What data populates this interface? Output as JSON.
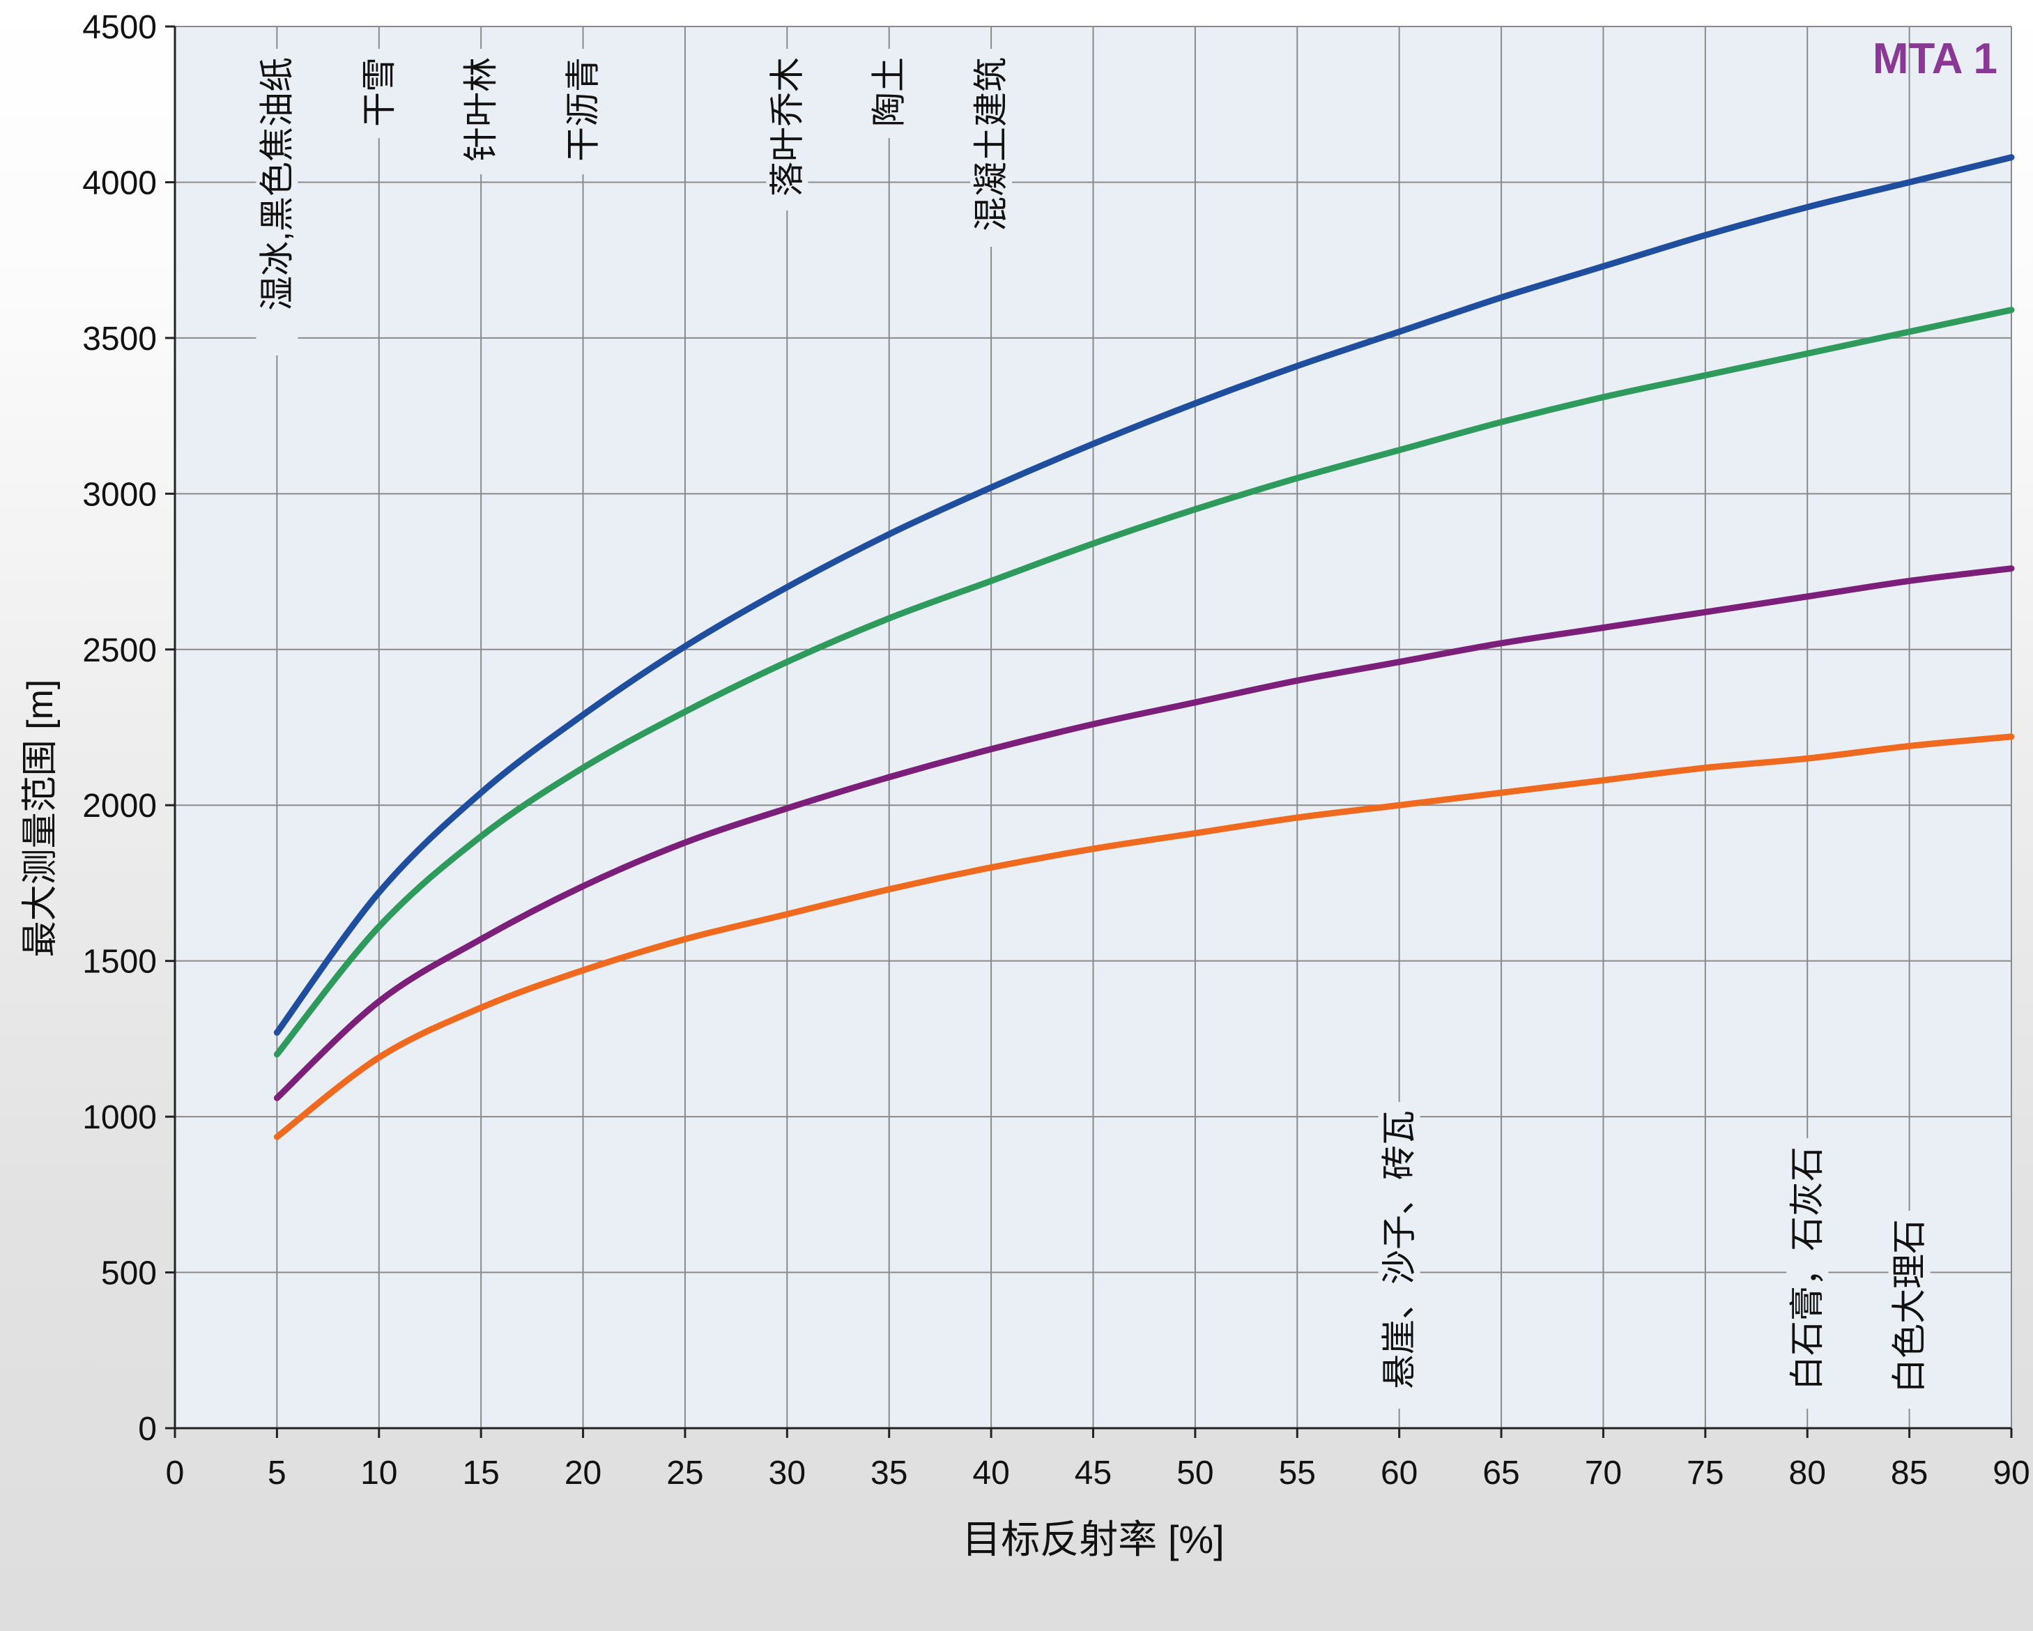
{
  "chart_data": {
    "type": "line",
    "title": "",
    "badge": "MTA 1",
    "xlabel": "目标反射率 [%]",
    "ylabel": "最大测量范围 [m]",
    "xlim": [
      0,
      90
    ],
    "ylim": [
      0,
      4500
    ],
    "x_ticks": [
      0,
      5,
      10,
      15,
      20,
      25,
      30,
      35,
      40,
      45,
      50,
      55,
      60,
      65,
      70,
      75,
      80,
      85,
      90
    ],
    "y_ticks": [
      0,
      500,
      1000,
      1500,
      2000,
      2500,
      3000,
      3500,
      4000,
      4500
    ],
    "grid": true,
    "x": [
      5,
      10,
      15,
      20,
      25,
      30,
      35,
      40,
      45,
      50,
      55,
      60,
      65,
      70,
      75,
      80,
      85,
      90
    ],
    "series": [
      {
        "color": "#1f4e9e",
        "values": [
          1270,
          1720,
          2040,
          2290,
          2510,
          2700,
          2870,
          3020,
          3160,
          3290,
          3410,
          3520,
          3630,
          3730,
          3830,
          3920,
          4000,
          4080
        ]
      },
      {
        "color": "#2e9a5c",
        "values": [
          1200,
          1610,
          1900,
          2120,
          2300,
          2460,
          2600,
          2720,
          2840,
          2950,
          3050,
          3140,
          3230,
          3310,
          3380,
          3450,
          3520,
          3590
        ]
      },
      {
        "color": "#7b1f7b",
        "values": [
          1060,
          1370,
          1570,
          1740,
          1880,
          1990,
          2090,
          2180,
          2260,
          2330,
          2400,
          2460,
          2520,
          2570,
          2620,
          2670,
          2720,
          2760
        ]
      },
      {
        "color": "#ef6a1f",
        "values": [
          935,
          1190,
          1350,
          1470,
          1570,
          1650,
          1730,
          1800,
          1860,
          1910,
          1960,
          2000,
          2040,
          2080,
          2120,
          2150,
          2190,
          2220
        ]
      }
    ],
    "annotations": [
      {
        "x": 5,
        "anchor": "top",
        "text": "湿冰,黑色焦油纸"
      },
      {
        "x": 10,
        "anchor": "top",
        "text": "干雪"
      },
      {
        "x": 15,
        "anchor": "top",
        "text": "针叶林"
      },
      {
        "x": 20,
        "anchor": "top",
        "text": "干沥青"
      },
      {
        "x": 30,
        "anchor": "top",
        "text": "落叶乔木"
      },
      {
        "x": 35,
        "anchor": "top",
        "text": "陶土"
      },
      {
        "x": 40,
        "anchor": "top",
        "text": "混凝土建筑"
      },
      {
        "x": 60,
        "anchor": "bottom",
        "text": "悬崖、沙子、砖瓦"
      },
      {
        "x": 80,
        "anchor": "bottom",
        "text": "白石膏，石灰石"
      },
      {
        "x": 85,
        "anchor": "bottom",
        "text": "白色大理石"
      }
    ],
    "colors": {
      "plot_background": "#e9eff5",
      "grid": "#8a8a8a",
      "badge": "#8a3896",
      "text": "#111111"
    }
  }
}
